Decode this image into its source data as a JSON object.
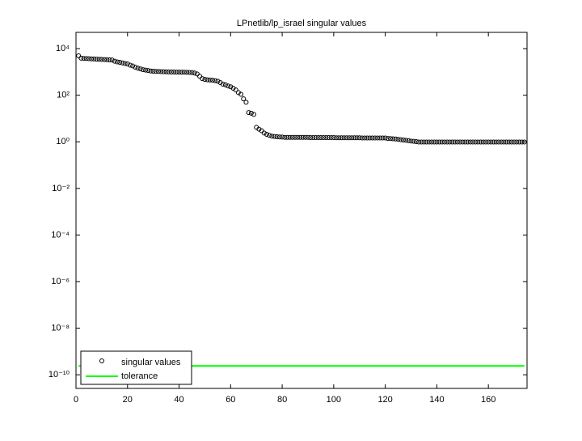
{
  "chart_data": {
    "type": "scatter",
    "title": "LPnetlib/lp_israel singular values",
    "log_y": true,
    "xlim": [
      0,
      175
    ],
    "ylim": [
      2.6e-11,
      50000
    ],
    "xticks": [
      0,
      20,
      40,
      60,
      80,
      100,
      120,
      140,
      160
    ],
    "yticks": [
      {
        "value": 1e-10,
        "label": "10⁻¹⁰"
      },
      {
        "value": 1e-08,
        "label": "10⁻⁸"
      },
      {
        "value": 1e-06,
        "label": "10⁻⁶"
      },
      {
        "value": 0.0001,
        "label": "10⁻⁴"
      },
      {
        "value": 0.01,
        "label": "10⁻²"
      },
      {
        "value": 1,
        "label": "10⁰"
      },
      {
        "value": 100,
        "label": "10²"
      },
      {
        "value": 10000,
        "label": "10⁴"
      }
    ],
    "legend": "lower left",
    "series": [
      {
        "name": "singular values",
        "color": "#000000",
        "style": "markers",
        "x": [
          1,
          2,
          3,
          4,
          5,
          6,
          7,
          8,
          9,
          10,
          11,
          12,
          13,
          14,
          15,
          16,
          17,
          18,
          19,
          20,
          21,
          22,
          23,
          24,
          25,
          26,
          27,
          28,
          29,
          30,
          31,
          32,
          33,
          34,
          35,
          36,
          37,
          38,
          39,
          40,
          41,
          42,
          43,
          44,
          45,
          46,
          47,
          48,
          49,
          50,
          51,
          52,
          53,
          54,
          55,
          56,
          57,
          58,
          59,
          60,
          61,
          62,
          63,
          64,
          65,
          66,
          67,
          68,
          69,
          70,
          71,
          72,
          73,
          74,
          75,
          76,
          77,
          78,
          79,
          80,
          81,
          82,
          83,
          84,
          85,
          86,
          87,
          88,
          89,
          90,
          91,
          92,
          93,
          94,
          95,
          96,
          97,
          98,
          99,
          100,
          101,
          102,
          103,
          104,
          105,
          106,
          107,
          108,
          109,
          110,
          111,
          112,
          113,
          114,
          115,
          116,
          117,
          118,
          119,
          120,
          121,
          122,
          123,
          124,
          125,
          126,
          127,
          128,
          129,
          130,
          131,
          132,
          133,
          134,
          135,
          136,
          137,
          138,
          139,
          140,
          141,
          142,
          143,
          144,
          145,
          146,
          147,
          148,
          149,
          150,
          151,
          152,
          153,
          154,
          155,
          156,
          157,
          158,
          159,
          160,
          161,
          162,
          163,
          164,
          165,
          166,
          167,
          168,
          169,
          170,
          171,
          172,
          173,
          174
        ],
        "values": [
          4900,
          3900,
          3800,
          3750,
          3700,
          3650,
          3600,
          3550,
          3500,
          3450,
          3400,
          3350,
          3300,
          3250,
          2900,
          2700,
          2600,
          2450,
          2300,
          2200,
          1950,
          1800,
          1600,
          1450,
          1350,
          1250,
          1200,
          1150,
          1100,
          1080,
          1050,
          1040,
          1030,
          1020,
          1010,
          1000,
          995,
          990,
          985,
          980,
          975,
          970,
          960,
          950,
          940,
          900,
          820,
          650,
          520,
          480,
          460,
          450,
          440,
          420,
          400,
          350,
          300,
          280,
          250,
          230,
          200,
          170,
          130,
          110,
          70,
          50,
          18,
          17,
          15,
          4.2,
          3.5,
          3.0,
          2.4,
          2.1,
          1.9,
          1.75,
          1.7,
          1.65,
          1.62,
          1.6,
          1.55,
          1.55,
          1.55,
          1.55,
          1.55,
          1.55,
          1.55,
          1.55,
          1.55,
          1.55,
          1.52,
          1.52,
          1.52,
          1.52,
          1.52,
          1.52,
          1.52,
          1.52,
          1.52,
          1.52,
          1.5,
          1.5,
          1.5,
          1.5,
          1.5,
          1.5,
          1.5,
          1.5,
          1.5,
          1.5,
          1.47,
          1.47,
          1.47,
          1.47,
          1.47,
          1.47,
          1.47,
          1.47,
          1.47,
          1.47,
          1.4,
          1.38,
          1.35,
          1.32,
          1.28,
          1.24,
          1.2,
          1.16,
          1.12,
          1.08,
          1.05,
          1.02,
          0.98,
          0.98,
          0.98,
          0.98,
          0.98,
          0.98,
          0.98,
          0.98,
          0.98,
          0.98,
          0.98,
          0.98,
          0.98,
          0.98,
          0.98,
          0.98,
          0.98,
          0.98,
          0.98,
          0.98,
          0.98,
          0.98,
          0.98,
          0.98,
          0.98,
          0.98,
          0.98,
          0.98,
          0.98,
          0.98,
          0.98,
          0.98,
          0.98,
          0.98,
          0.98,
          0.98,
          0.98,
          0.98,
          0.98,
          0.98,
          0.98,
          0.98
        ]
      },
      {
        "name": "tolerance",
        "color": "#00ff00",
        "style": "line",
        "x": [
          1,
          174
        ],
        "values": [
          2.4e-10,
          2.4e-10
        ]
      }
    ]
  }
}
